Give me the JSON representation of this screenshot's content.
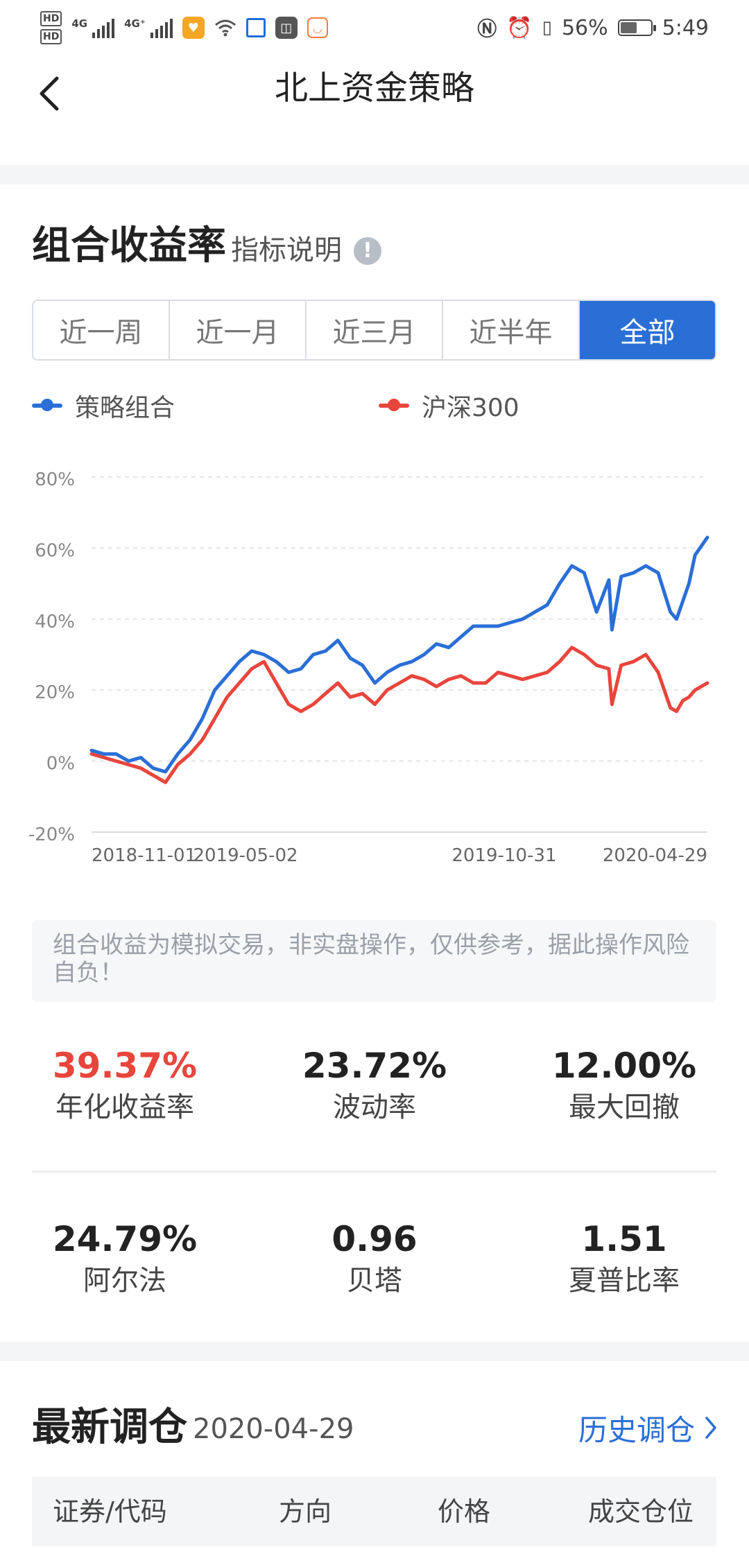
{
  "status_bar": {
    "hd1": "HD",
    "hd2": "HD",
    "net1": "4G",
    "net2": "4G⁺",
    "battery_pct": "56%",
    "time": "5:49",
    "battery_level": 0.56
  },
  "nav": {
    "title": "北上资金策略"
  },
  "performance": {
    "title": "组合收益率",
    "subtitle": "指标说明",
    "info_glyph": "!",
    "tabs": [
      {
        "label": "近一周",
        "active": false
      },
      {
        "label": "近一月",
        "active": false
      },
      {
        "label": "近三月",
        "active": false
      },
      {
        "label": "近半年",
        "active": false
      },
      {
        "label": "全部",
        "active": true
      }
    ],
    "legend": [
      {
        "name": "策略组合",
        "color": "#2a6fd6"
      },
      {
        "name": "沪深300",
        "color": "#e8453c"
      }
    ]
  },
  "chart_data": {
    "type": "line",
    "y_ticks": [
      "80%",
      "60%",
      "40%",
      "20%",
      "0%",
      "-20%"
    ],
    "y_tick_values": [
      80,
      60,
      40,
      20,
      0,
      -20
    ],
    "x_tick_labels": [
      "2018-11-01",
      "2019-05-02",
      "2019-10-31",
      "2020-04-29"
    ],
    "ylim": [
      -20,
      80
    ],
    "x_range": [
      0,
      100
    ],
    "x_tick_positions": [
      0,
      25,
      67,
      100
    ],
    "grid": true,
    "series": [
      {
        "name": "策略组合",
        "color": "#2a6fd6",
        "x": [
          0,
          2,
          4,
          6,
          8,
          10,
          12,
          14,
          16,
          18,
          20,
          22,
          24,
          26,
          28,
          30,
          32,
          34,
          36,
          38,
          40,
          42,
          44,
          46,
          48,
          50,
          52,
          54,
          56,
          58,
          60,
          62,
          64,
          66,
          68,
          70,
          72,
          74,
          76,
          78,
          80,
          82,
          84,
          84.5,
          86,
          88,
          90,
          92,
          94,
          95,
          96,
          97,
          98,
          100
        ],
        "y": [
          3,
          2,
          2,
          0,
          1,
          -2,
          -3,
          2,
          6,
          12,
          20,
          24,
          28,
          31,
          30,
          28,
          25,
          26,
          30,
          31,
          34,
          29,
          27,
          22,
          25,
          27,
          28,
          30,
          33,
          32,
          35,
          38,
          38,
          38,
          39,
          40,
          42,
          44,
          50,
          55,
          53,
          42,
          51,
          37,
          52,
          53,
          55,
          53,
          42,
          40,
          45,
          50,
          58,
          63
        ]
      },
      {
        "name": "沪深300",
        "color": "#e8453c",
        "x": [
          0,
          2,
          4,
          6,
          8,
          10,
          12,
          14,
          16,
          18,
          20,
          22,
          24,
          26,
          28,
          30,
          32,
          34,
          36,
          38,
          40,
          42,
          44,
          46,
          48,
          50,
          52,
          54,
          56,
          58,
          60,
          62,
          64,
          66,
          68,
          70,
          72,
          74,
          76,
          78,
          80,
          82,
          84,
          84.5,
          86,
          88,
          90,
          92,
          94,
          95,
          96,
          97,
          98,
          100
        ],
        "y": [
          2,
          1,
          0,
          -1,
          -2,
          -4,
          -6,
          -1,
          2,
          6,
          12,
          18,
          22,
          26,
          28,
          22,
          16,
          14,
          16,
          19,
          22,
          18,
          19,
          16,
          20,
          22,
          24,
          23,
          21,
          23,
          24,
          22,
          22,
          25,
          24,
          23,
          24,
          25,
          28,
          32,
          30,
          27,
          26,
          16,
          27,
          28,
          30,
          25,
          15,
          14,
          17,
          18,
          20,
          22
        ]
      }
    ]
  },
  "disclaimer": "组合收益为模拟交易，非实盘操作，仅供参考，据此操作风险自负！",
  "metrics": [
    {
      "value": "39.37%",
      "label": "年化收益率",
      "highlight": true
    },
    {
      "value": "23.72%",
      "label": "波动率",
      "highlight": false
    },
    {
      "value": "12.00%",
      "label": "最大回撤",
      "highlight": false
    },
    {
      "value": "24.79%",
      "label": "阿尔法",
      "highlight": false
    },
    {
      "value": "0.96",
      "label": "贝塔",
      "highlight": false
    },
    {
      "value": "1.51",
      "label": "夏普比率",
      "highlight": false
    }
  ],
  "rebalance": {
    "title": "最新调仓",
    "date": "2020-04-29",
    "history_link": "历史调仓",
    "columns": [
      "证券/代码",
      "方向",
      "价格",
      "成交仓位"
    ]
  },
  "colors": {
    "accent": "#2a6fd6",
    "red": "#e8453c"
  }
}
